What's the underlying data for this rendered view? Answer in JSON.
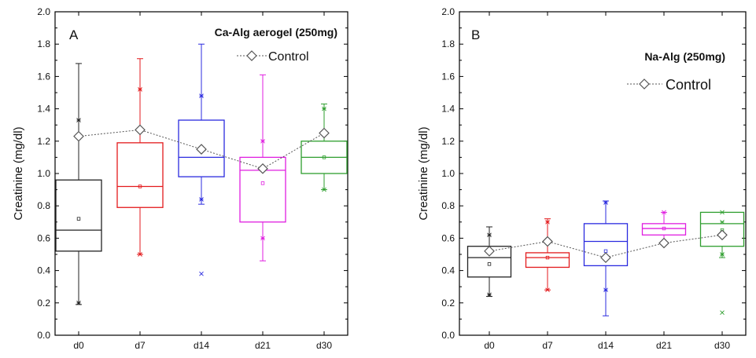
{
  "chart_data": [
    {
      "type": "box",
      "panel_label": "A",
      "title": "Ca-Alg aerogel (250mg)",
      "xlabel": "",
      "ylabel": "Creatinine (mg/dl)",
      "ylim": [
        0,
        2.0
      ],
      "yticks": [
        "0.0",
        "0.2",
        "0.4",
        "0.6",
        "0.8",
        "1.0",
        "1.2",
        "1.4",
        "1.6",
        "1.8",
        "2.0"
      ],
      "categories": [
        "d0",
        "d7",
        "d14",
        "d21",
        "d30"
      ],
      "colors": [
        "#222222",
        "#e31a1c",
        "#2b2bdf",
        "#e01ee0",
        "#2e9e2e"
      ],
      "boxes": [
        {
          "q1": 0.52,
          "median": 0.65,
          "q3": 0.96,
          "whisker_low": 0.19,
          "whisker_high": 1.68,
          "mean": 0.72,
          "p1": 0.2,
          "p99": 1.33,
          "outliers": []
        },
        {
          "q1": 0.79,
          "median": 0.92,
          "q3": 1.19,
          "whisker_low": 0.5,
          "whisker_high": 1.71,
          "mean": 0.92,
          "p1": 0.5,
          "p99": 1.52,
          "outliers": []
        },
        {
          "q1": 0.98,
          "median": 1.1,
          "q3": 1.33,
          "whisker_low": 0.81,
          "whisker_high": 1.8,
          "mean": 1.15,
          "p1": 0.84,
          "p99": 1.48,
          "outliers": [
            0.38
          ]
        },
        {
          "q1": 0.7,
          "median": 1.02,
          "q3": 1.1,
          "whisker_low": 0.46,
          "whisker_high": 1.61,
          "mean": 0.94,
          "p1": 0.6,
          "p99": 1.2,
          "outliers": []
        },
        {
          "q1": 1.0,
          "median": 1.1,
          "q3": 1.2,
          "whisker_low": 0.9,
          "whisker_high": 1.43,
          "mean": 1.1,
          "p1": 0.9,
          "p99": 1.4,
          "outliers": []
        }
      ],
      "control": {
        "name": "Control",
        "values": [
          1.23,
          1.27,
          1.15,
          1.03,
          1.25
        ],
        "legend_position": "top-right"
      }
    },
    {
      "type": "box",
      "panel_label": "B",
      "title": "Na-Alg (250mg)",
      "xlabel": "",
      "ylabel": "Creatinine (mg/dl)",
      "ylim": [
        0,
        2.0
      ],
      "yticks": [
        "0.0",
        "0.2",
        "0.4",
        "0.6",
        "0.8",
        "1.0",
        "1.2",
        "1.4",
        "1.6",
        "1.8",
        "2.0"
      ],
      "categories": [
        "d0",
        "d7",
        "d14",
        "d21",
        "d30"
      ],
      "colors": [
        "#222222",
        "#e31a1c",
        "#2b2bdf",
        "#e01ee0",
        "#2e9e2e"
      ],
      "boxes": [
        {
          "q1": 0.36,
          "median": 0.48,
          "q3": 0.55,
          "whisker_low": 0.24,
          "whisker_high": 0.67,
          "mean": 0.44,
          "p1": 0.25,
          "p99": 0.62,
          "outliers": []
        },
        {
          "q1": 0.42,
          "median": 0.48,
          "q3": 0.51,
          "whisker_low": 0.28,
          "whisker_high": 0.72,
          "mean": 0.48,
          "p1": 0.28,
          "p99": 0.7,
          "outliers": []
        },
        {
          "q1": 0.43,
          "median": 0.58,
          "q3": 0.69,
          "whisker_low": 0.12,
          "whisker_high": 0.83,
          "mean": 0.52,
          "p1": 0.28,
          "p99": 0.82,
          "outliers": []
        },
        {
          "q1": 0.62,
          "median": 0.66,
          "q3": 0.69,
          "whisker_low": 0.57,
          "whisker_high": 0.76,
          "mean": 0.66,
          "p1": 0.58,
          "p99": 0.76,
          "outliers": []
        },
        {
          "q1": 0.55,
          "median": 0.69,
          "q3": 0.76,
          "whisker_low": 0.48,
          "whisker_high": 0.76,
          "mean": 0.65,
          "p1": 0.5,
          "p99": 0.7,
          "outliers": [
            0.14,
            0.76
          ]
        }
      ],
      "control": {
        "name": "Control",
        "values": [
          0.52,
          0.58,
          0.48,
          0.57,
          0.62
        ],
        "legend_position": "top-right"
      }
    }
  ]
}
